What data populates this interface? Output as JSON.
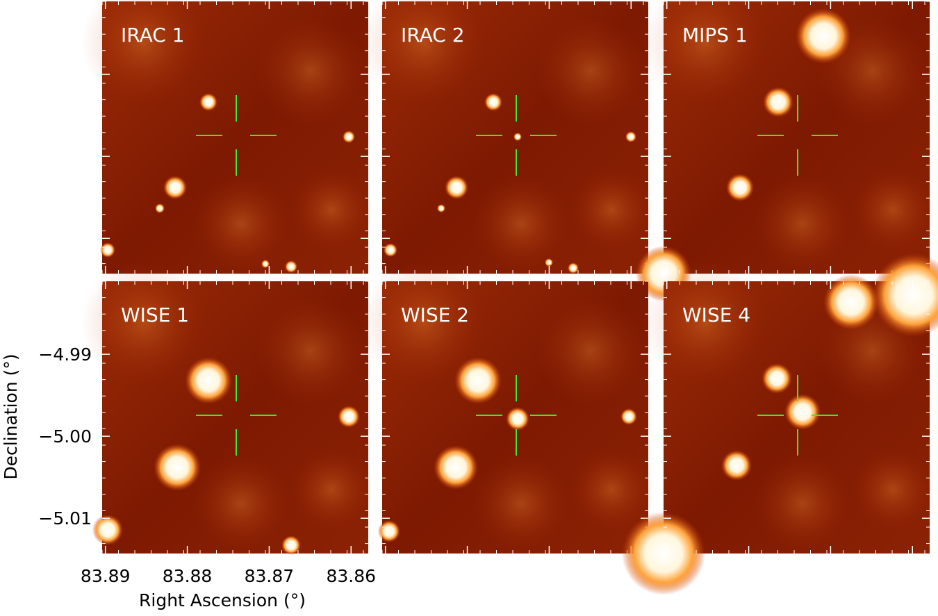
{
  "panels": [
    {
      "label": "IRAC 1"
    },
    {
      "label": "IRAC 2"
    },
    {
      "label": "MIPS 1"
    },
    {
      "label": "WISE 1"
    },
    {
      "label": "WISE 2"
    },
    {
      "label": "WISE 4"
    }
  ],
  "x_axis": {
    "label": "Right Ascension (°)",
    "xlim": [
      83.8904,
      83.8579
    ],
    "xticks": [
      83.89,
      83.88,
      83.87,
      83.86
    ]
  },
  "y_axis": {
    "label": "Declination (°)",
    "ylim": [
      -5.0143,
      -4.9811
    ],
    "yticks": [
      {
        "value": -4.99,
        "label": "−4.99"
      },
      {
        "value": -5,
        "label": "−5.00"
      },
      {
        "value": -5.01,
        "label": "−5.01"
      }
    ]
  }
}
